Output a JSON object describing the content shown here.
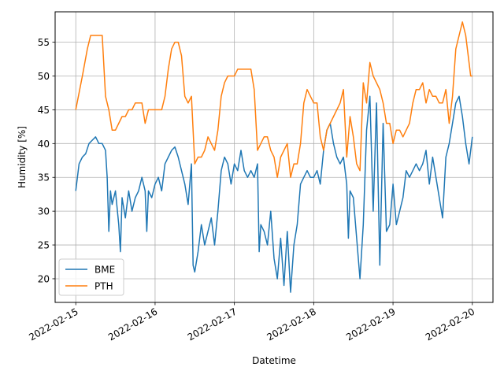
{
  "chart_data": {
    "type": "line",
    "title": "",
    "xlabel": "Datetime",
    "ylabel": "Humidity [%]",
    "grid": true,
    "legend_position": "lower-left",
    "x_ticks": [
      "2022-02-15",
      "2022-02-16",
      "2022-02-17",
      "2022-02-18",
      "2022-02-19",
      "2022-02-20"
    ],
    "y_ticks": [
      20,
      25,
      30,
      35,
      40,
      45,
      50,
      55
    ],
    "xlim": [
      "2022-02-14T17:45",
      "2022-02-20T06:15"
    ],
    "ylim": [
      16.5,
      59.5
    ],
    "series": [
      {
        "name": "BME",
        "color": "#1f77b4",
        "points": [
          [
            "2022-02-15T00:00",
            33
          ],
          [
            "2022-02-15T01:00",
            37
          ],
          [
            "2022-02-15T02:00",
            38
          ],
          [
            "2022-02-15T03:00",
            38.5
          ],
          [
            "2022-02-15T04:00",
            40
          ],
          [
            "2022-02-15T05:00",
            40.5
          ],
          [
            "2022-02-15T06:00",
            41
          ],
          [
            "2022-02-15T07:00",
            40
          ],
          [
            "2022-02-15T08:00",
            40
          ],
          [
            "2022-02-15T09:00",
            39
          ],
          [
            "2022-02-15T09:30",
            35
          ],
          [
            "2022-02-15T10:00",
            27
          ],
          [
            "2022-02-15T10:30",
            33
          ],
          [
            "2022-02-15T11:00",
            31
          ],
          [
            "2022-02-15T12:00",
            33
          ],
          [
            "2022-02-15T13:00",
            28
          ],
          [
            "2022-02-15T13:30",
            24
          ],
          [
            "2022-02-15T14:00",
            32
          ],
          [
            "2022-02-15T15:00",
            29
          ],
          [
            "2022-02-15T16:00",
            33
          ],
          [
            "2022-02-15T17:00",
            30
          ],
          [
            "2022-02-15T18:00",
            32
          ],
          [
            "2022-02-15T19:00",
            33
          ],
          [
            "2022-02-15T20:00",
            35
          ],
          [
            "2022-02-15T21:00",
            33
          ],
          [
            "2022-02-15T21:30",
            27
          ],
          [
            "2022-02-15T22:00",
            33
          ],
          [
            "2022-02-15T23:00",
            32
          ],
          [
            "2022-02-16T00:00",
            34
          ],
          [
            "2022-02-16T01:00",
            35
          ],
          [
            "2022-02-16T02:00",
            33
          ],
          [
            "2022-02-16T03:00",
            37
          ],
          [
            "2022-02-16T04:00",
            38
          ],
          [
            "2022-02-16T05:00",
            39
          ],
          [
            "2022-02-16T06:00",
            39.5
          ],
          [
            "2022-02-16T07:00",
            38
          ],
          [
            "2022-02-16T08:00",
            36
          ],
          [
            "2022-02-16T09:00",
            34
          ],
          [
            "2022-02-16T10:00",
            31
          ],
          [
            "2022-02-16T11:00",
            37
          ],
          [
            "2022-02-16T11:30",
            22
          ],
          [
            "2022-02-16T12:00",
            21
          ],
          [
            "2022-02-16T13:00",
            24
          ],
          [
            "2022-02-16T14:00",
            28
          ],
          [
            "2022-02-16T15:00",
            25
          ],
          [
            "2022-02-16T16:00",
            27
          ],
          [
            "2022-02-16T17:00",
            29
          ],
          [
            "2022-02-16T18:00",
            25
          ],
          [
            "2022-02-16T19:00",
            30
          ],
          [
            "2022-02-16T20:00",
            36
          ],
          [
            "2022-02-16T21:00",
            38
          ],
          [
            "2022-02-16T22:00",
            37
          ],
          [
            "2022-02-16T23:00",
            34
          ],
          [
            "2022-02-17T00:00",
            37
          ],
          [
            "2022-02-17T01:00",
            36
          ],
          [
            "2022-02-17T02:00",
            39
          ],
          [
            "2022-02-17T03:00",
            36
          ],
          [
            "2022-02-17T04:00",
            35
          ],
          [
            "2022-02-17T05:00",
            36
          ],
          [
            "2022-02-17T06:00",
            35
          ],
          [
            "2022-02-17T07:00",
            37
          ],
          [
            "2022-02-17T07:30",
            24
          ],
          [
            "2022-02-17T08:00",
            28
          ],
          [
            "2022-02-17T09:00",
            27
          ],
          [
            "2022-02-17T10:00",
            25
          ],
          [
            "2022-02-17T11:00",
            30
          ],
          [
            "2022-02-17T12:00",
            23
          ],
          [
            "2022-02-17T13:00",
            20
          ],
          [
            "2022-02-17T14:00",
            26
          ],
          [
            "2022-02-17T15:00",
            19
          ],
          [
            "2022-02-17T16:00",
            27
          ],
          [
            "2022-02-17T17:00",
            18
          ],
          [
            "2022-02-17T18:00",
            25
          ],
          [
            "2022-02-17T19:00",
            28
          ],
          [
            "2022-02-17T20:00",
            34
          ],
          [
            "2022-02-17T21:00",
            35
          ],
          [
            "2022-02-17T22:00",
            36
          ],
          [
            "2022-02-17T23:00",
            35
          ],
          [
            "2022-02-18T00:00",
            35
          ],
          [
            "2022-02-18T01:00",
            36
          ],
          [
            "2022-02-18T02:00",
            34
          ],
          [
            "2022-02-18T03:00",
            39
          ],
          [
            "2022-02-18T04:00",
            42
          ],
          [
            "2022-02-18T05:00",
            43
          ],
          [
            "2022-02-18T06:00",
            40
          ],
          [
            "2022-02-18T07:00",
            38
          ],
          [
            "2022-02-18T08:00",
            37
          ],
          [
            "2022-02-18T09:00",
            38
          ],
          [
            "2022-02-18T10:00",
            34
          ],
          [
            "2022-02-18T10:30",
            26
          ],
          [
            "2022-02-18T11:00",
            33
          ],
          [
            "2022-02-18T12:00",
            32
          ],
          [
            "2022-02-18T13:00",
            26
          ],
          [
            "2022-02-18T14:00",
            20
          ],
          [
            "2022-02-18T15:00",
            28
          ],
          [
            "2022-02-18T16:00",
            42
          ],
          [
            "2022-02-18T17:00",
            47
          ],
          [
            "2022-02-18T18:00",
            30
          ],
          [
            "2022-02-18T19:00",
            46
          ],
          [
            "2022-02-18T20:00",
            22
          ],
          [
            "2022-02-18T21:00",
            43
          ],
          [
            "2022-02-18T22:00",
            27
          ],
          [
            "2022-02-18T23:00",
            28
          ],
          [
            "2022-02-19T00:00",
            34
          ],
          [
            "2022-02-19T01:00",
            28
          ],
          [
            "2022-02-19T02:00",
            30
          ],
          [
            "2022-02-19T03:00",
            32
          ],
          [
            "2022-02-19T04:00",
            36
          ],
          [
            "2022-02-19T05:00",
            35
          ],
          [
            "2022-02-19T06:00",
            36
          ],
          [
            "2022-02-19T07:00",
            37
          ],
          [
            "2022-02-19T08:00",
            36
          ],
          [
            "2022-02-19T09:00",
            37
          ],
          [
            "2022-02-19T10:00",
            39
          ],
          [
            "2022-02-19T11:00",
            34
          ],
          [
            "2022-02-19T12:00",
            38
          ],
          [
            "2022-02-19T13:00",
            35
          ],
          [
            "2022-02-19T14:00",
            32
          ],
          [
            "2022-02-19T15:00",
            29
          ],
          [
            "2022-02-19T16:00",
            38
          ],
          [
            "2022-02-19T17:00",
            40
          ],
          [
            "2022-02-19T18:00",
            43
          ],
          [
            "2022-02-19T19:00",
            46
          ],
          [
            "2022-02-19T20:00",
            47
          ],
          [
            "2022-02-19T21:00",
            44
          ],
          [
            "2022-02-19T22:00",
            40
          ],
          [
            "2022-02-19T23:00",
            37
          ],
          [
            "2022-02-20T00:00",
            41
          ]
        ]
      },
      {
        "name": "PTH",
        "color": "#ff7f0e",
        "points": [
          [
            "2022-02-15T00:00",
            45
          ],
          [
            "2022-02-15T02:00",
            50
          ],
          [
            "2022-02-15T03:30",
            54
          ],
          [
            "2022-02-15T04:30",
            56
          ],
          [
            "2022-02-15T08:00",
            56
          ],
          [
            "2022-02-15T09:00",
            47
          ],
          [
            "2022-02-15T10:00",
            45
          ],
          [
            "2022-02-15T11:00",
            42
          ],
          [
            "2022-02-15T12:00",
            42
          ],
          [
            "2022-02-15T14:00",
            44
          ],
          [
            "2022-02-15T15:00",
            44
          ],
          [
            "2022-02-15T16:00",
            45
          ],
          [
            "2022-02-15T17:00",
            45
          ],
          [
            "2022-02-15T18:00",
            46
          ],
          [
            "2022-02-15T20:00",
            46
          ],
          [
            "2022-02-15T21:00",
            43
          ],
          [
            "2022-02-15T22:00",
            45
          ],
          [
            "2022-02-16T02:00",
            45
          ],
          [
            "2022-02-16T03:00",
            47
          ],
          [
            "2022-02-16T04:00",
            51
          ],
          [
            "2022-02-16T05:00",
            54
          ],
          [
            "2022-02-16T06:00",
            55
          ],
          [
            "2022-02-16T07:00",
            55
          ],
          [
            "2022-02-16T08:00",
            53
          ],
          [
            "2022-02-16T09:00",
            47
          ],
          [
            "2022-02-16T10:00",
            46
          ],
          [
            "2022-02-16T11:00",
            47
          ],
          [
            "2022-02-16T12:00",
            37
          ],
          [
            "2022-02-16T13:00",
            38
          ],
          [
            "2022-02-16T14:00",
            38
          ],
          [
            "2022-02-16T15:00",
            39
          ],
          [
            "2022-02-16T16:00",
            41
          ],
          [
            "2022-02-16T18:00",
            39
          ],
          [
            "2022-02-16T19:00",
            42
          ],
          [
            "2022-02-16T20:00",
            47
          ],
          [
            "2022-02-16T21:00",
            49
          ],
          [
            "2022-02-16T22:00",
            50
          ],
          [
            "2022-02-17T00:00",
            50
          ],
          [
            "2022-02-17T01:00",
            51
          ],
          [
            "2022-02-17T05:00",
            51
          ],
          [
            "2022-02-17T06:00",
            48
          ],
          [
            "2022-02-17T07:00",
            39
          ],
          [
            "2022-02-17T08:00",
            40
          ],
          [
            "2022-02-17T09:00",
            41
          ],
          [
            "2022-02-17T10:00",
            41
          ],
          [
            "2022-02-17T11:00",
            39
          ],
          [
            "2022-02-17T12:00",
            38
          ],
          [
            "2022-02-17T13:00",
            35
          ],
          [
            "2022-02-17T14:00",
            38
          ],
          [
            "2022-02-17T16:00",
            40
          ],
          [
            "2022-02-17T17:00",
            35
          ],
          [
            "2022-02-17T18:00",
            37
          ],
          [
            "2022-02-17T19:00",
            37
          ],
          [
            "2022-02-17T20:00",
            40
          ],
          [
            "2022-02-17T21:00",
            46
          ],
          [
            "2022-02-17T22:00",
            48
          ],
          [
            "2022-02-17T23:00",
            47
          ],
          [
            "2022-02-18T00:00",
            46
          ],
          [
            "2022-02-18T01:00",
            46
          ],
          [
            "2022-02-18T02:00",
            41
          ],
          [
            "2022-02-18T03:00",
            39
          ],
          [
            "2022-02-18T04:00",
            42
          ],
          [
            "2022-02-18T06:00",
            44
          ],
          [
            "2022-02-18T08:00",
            46
          ],
          [
            "2022-02-18T09:00",
            48
          ],
          [
            "2022-02-18T10:00",
            38
          ],
          [
            "2022-02-18T11:00",
            44
          ],
          [
            "2022-02-18T12:00",
            41
          ],
          [
            "2022-02-18T13:00",
            37
          ],
          [
            "2022-02-18T14:00",
            36
          ],
          [
            "2022-02-18T15:00",
            49
          ],
          [
            "2022-02-18T16:00",
            46
          ],
          [
            "2022-02-18T17:00",
            52
          ],
          [
            "2022-02-18T18:00",
            50
          ],
          [
            "2022-02-18T20:00",
            48
          ],
          [
            "2022-02-18T21:00",
            46
          ],
          [
            "2022-02-18T22:00",
            43
          ],
          [
            "2022-02-18T23:00",
            43
          ],
          [
            "2022-02-19T00:00",
            40
          ],
          [
            "2022-02-19T01:00",
            42
          ],
          [
            "2022-02-19T02:00",
            42
          ],
          [
            "2022-02-19T03:00",
            41
          ],
          [
            "2022-02-19T05:00",
            43
          ],
          [
            "2022-02-19T06:00",
            46
          ],
          [
            "2022-02-19T07:00",
            48
          ],
          [
            "2022-02-19T08:00",
            48
          ],
          [
            "2022-02-19T09:00",
            49
          ],
          [
            "2022-02-19T10:00",
            46
          ],
          [
            "2022-02-19T11:00",
            48
          ],
          [
            "2022-02-19T12:00",
            47
          ],
          [
            "2022-02-19T13:00",
            47
          ],
          [
            "2022-02-19T14:00",
            46
          ],
          [
            "2022-02-19T15:00",
            46
          ],
          [
            "2022-02-19T16:00",
            48
          ],
          [
            "2022-02-19T17:00",
            43
          ],
          [
            "2022-02-19T18:00",
            47
          ],
          [
            "2022-02-19T19:00",
            54
          ],
          [
            "2022-02-19T20:00",
            56
          ],
          [
            "2022-02-19T21:00",
            58
          ],
          [
            "2022-02-19T22:00",
            56
          ],
          [
            "2022-02-19T23:00",
            52
          ],
          [
            "2022-02-19T23:30",
            50
          ],
          [
            "2022-02-20T00:00",
            50
          ]
        ]
      }
    ]
  }
}
